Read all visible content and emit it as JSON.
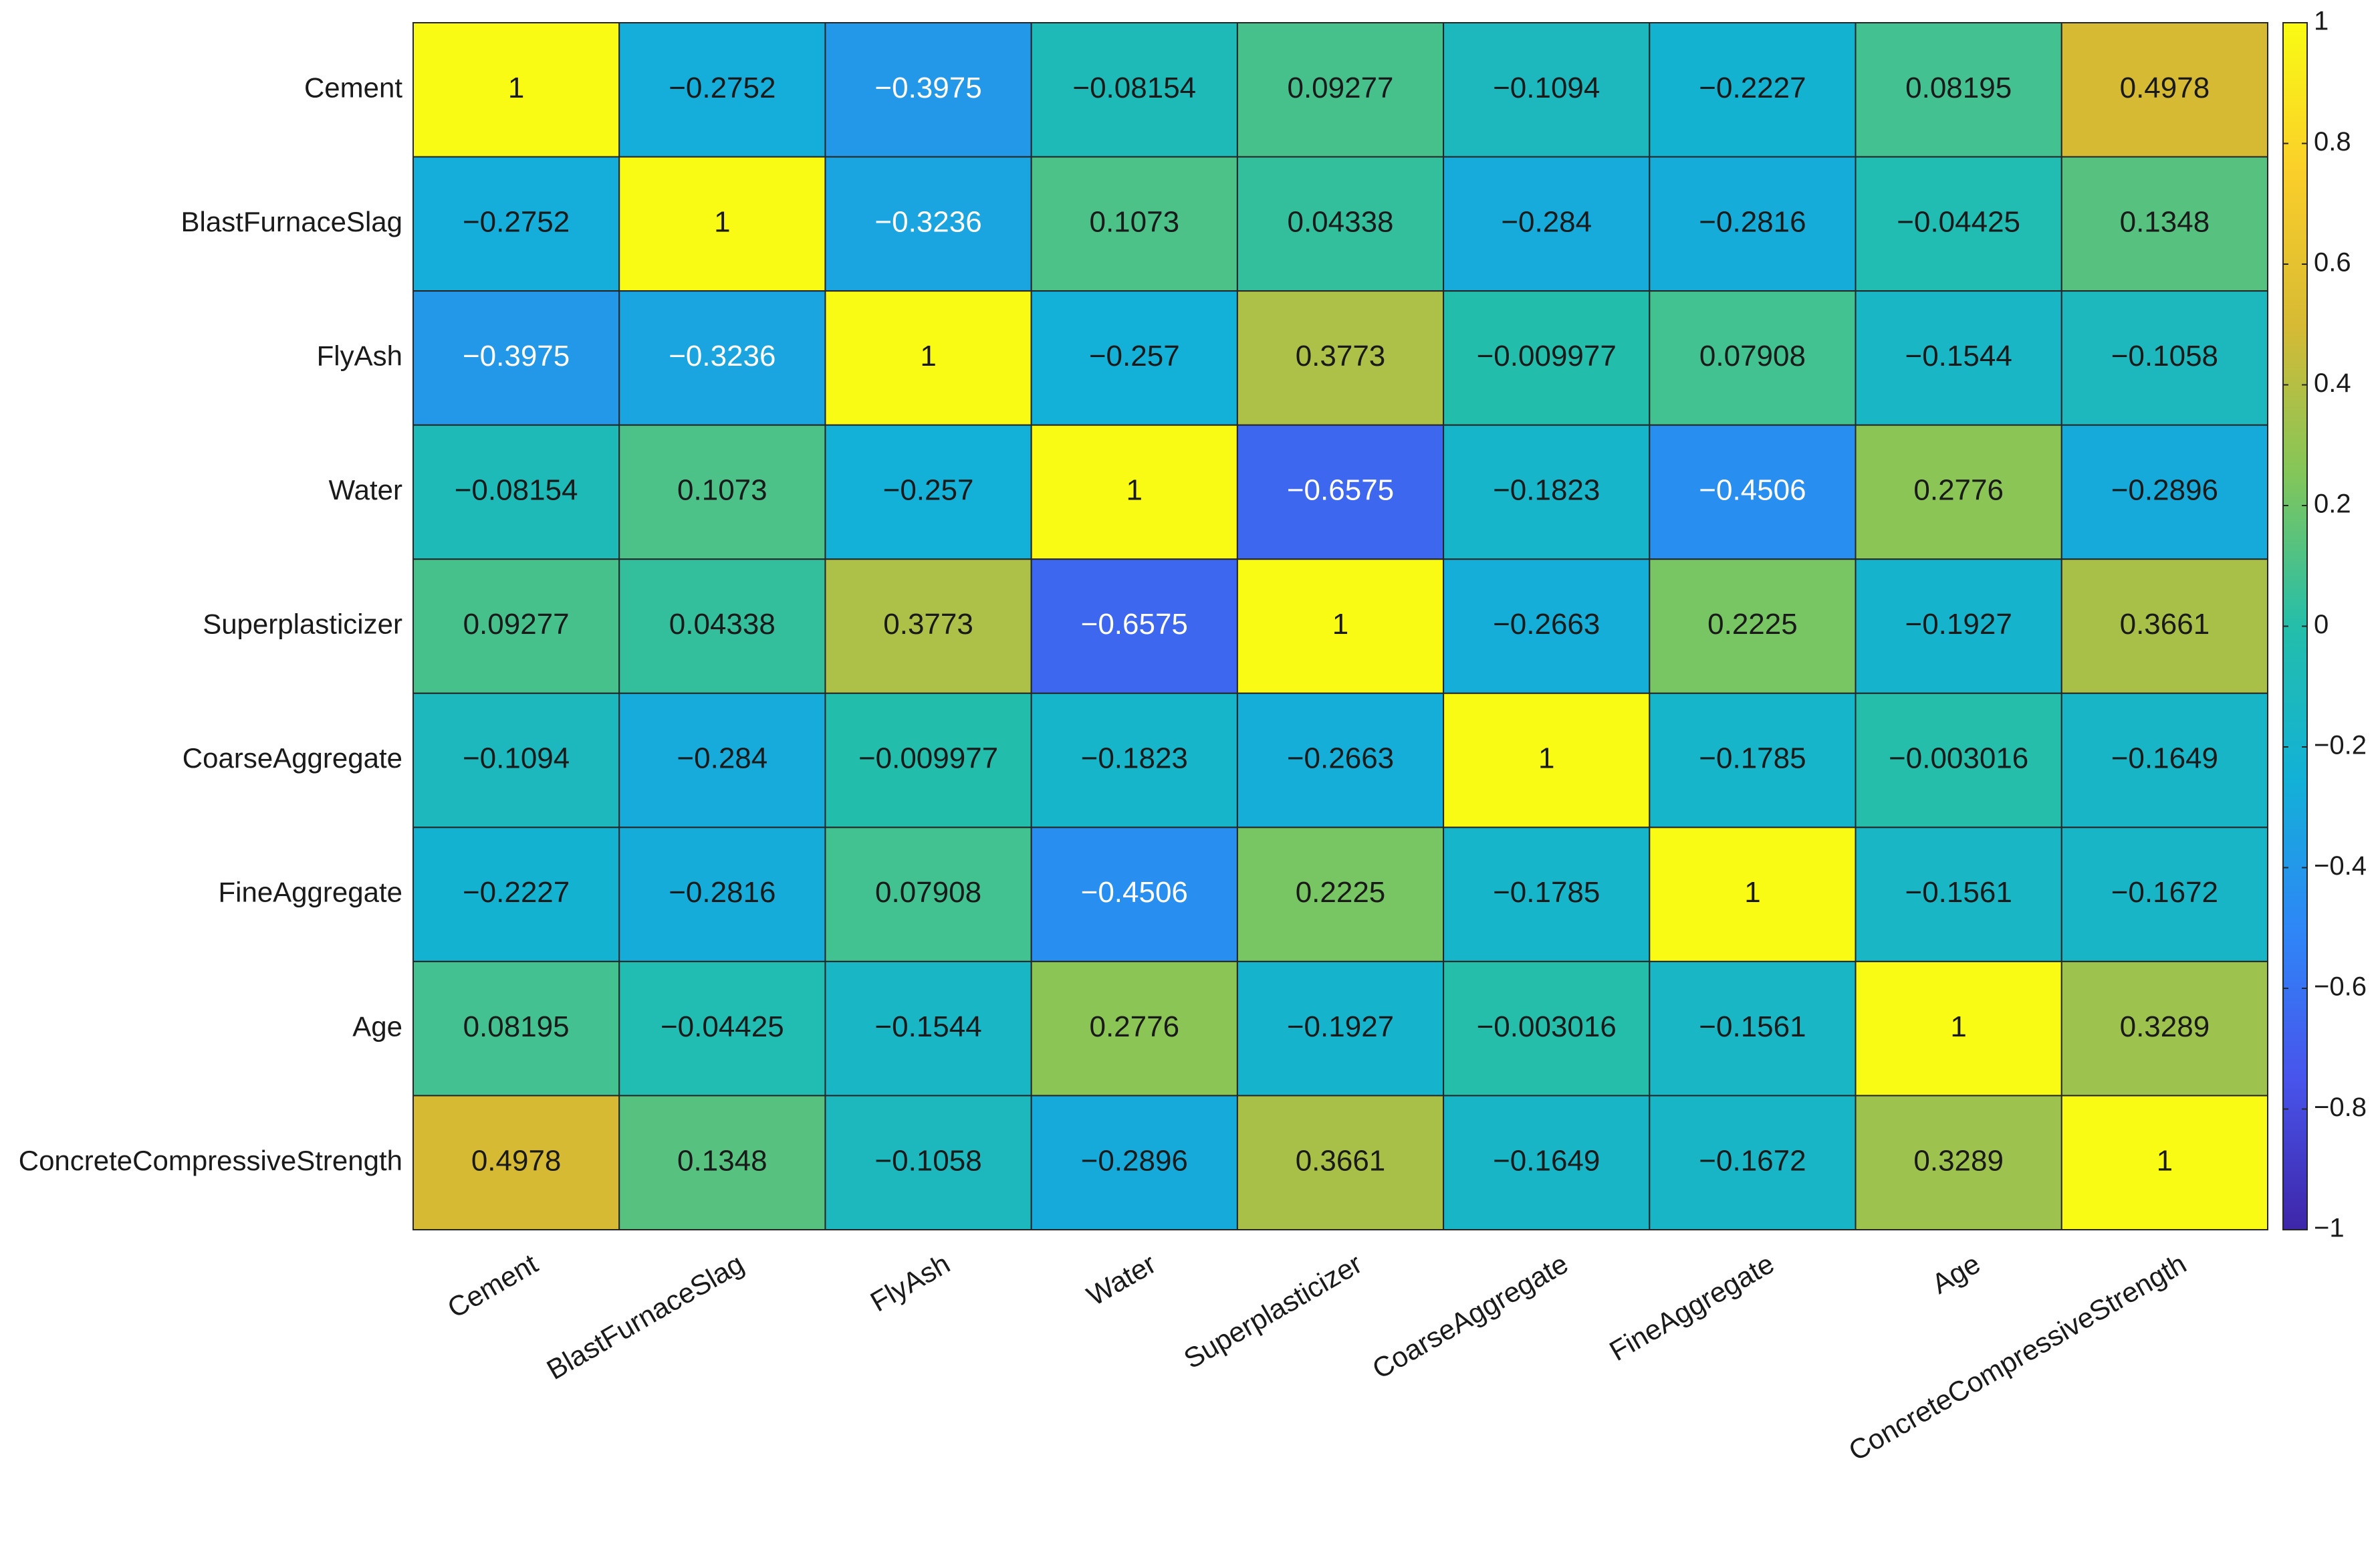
{
  "chart_data": {
    "type": "heatmap",
    "categories": [
      "Cement",
      "BlastFurnaceSlag",
      "FlyAsh",
      "Water",
      "Superplasticizer",
      "CoarseAggregate",
      "FineAggregate",
      "Age",
      "ConcreteCompressiveStrength"
    ],
    "values": [
      [
        1,
        -0.2752,
        -0.3975,
        -0.08154,
        0.09277,
        -0.1094,
        -0.2227,
        0.08195,
        0.4978
      ],
      [
        -0.2752,
        1,
        -0.3236,
        0.1073,
        0.04338,
        -0.284,
        -0.2816,
        -0.04425,
        0.1348
      ],
      [
        -0.3975,
        -0.3236,
        1,
        -0.257,
        0.3773,
        -0.009977,
        0.07908,
        -0.1544,
        -0.1058
      ],
      [
        -0.08154,
        0.1073,
        -0.257,
        1,
        -0.6575,
        -0.1823,
        -0.4506,
        0.2776,
        -0.2896
      ],
      [
        0.09277,
        0.04338,
        0.3773,
        -0.6575,
        1,
        -0.2663,
        0.2225,
        -0.1927,
        0.3661
      ],
      [
        -0.1094,
        -0.284,
        -0.009977,
        -0.1823,
        -0.2663,
        1,
        -0.1785,
        -0.003016,
        -0.1649
      ],
      [
        -0.2227,
        -0.2816,
        0.07908,
        -0.4506,
        0.2225,
        -0.1785,
        1,
        -0.1561,
        -0.1672
      ],
      [
        0.08195,
        -0.04425,
        -0.1544,
        0.2776,
        -0.1927,
        -0.003016,
        -0.1561,
        1,
        0.3289
      ],
      [
        0.4978,
        0.1348,
        -0.1058,
        -0.2896,
        0.3661,
        -0.1649,
        -0.1672,
        0.3289,
        1
      ]
    ],
    "value_labels": [
      [
        "1",
        "−0.2752",
        "−0.3975",
        "−0.08154",
        "0.09277",
        "−0.1094",
        "−0.2227",
        "0.08195",
        "0.4978"
      ],
      [
        "−0.2752",
        "1",
        "−0.3236",
        "0.1073",
        "0.04338",
        "−0.284",
        "−0.2816",
        "−0.04425",
        "0.1348"
      ],
      [
        "−0.3975",
        "−0.3236",
        "1",
        "−0.257",
        "0.3773",
        "−0.009977",
        "0.07908",
        "−0.1544",
        "−0.1058"
      ],
      [
        "−0.08154",
        "0.1073",
        "−0.257",
        "1",
        "−0.6575",
        "−0.1823",
        "−0.4506",
        "0.2776",
        "−0.2896"
      ],
      [
        "0.09277",
        "0.04338",
        "0.3773",
        "−0.6575",
        "1",
        "−0.2663",
        "0.2225",
        "−0.1927",
        "0.3661"
      ],
      [
        "−0.1094",
        "−0.284",
        "−0.009977",
        "−0.1823",
        "−0.2663",
        "1",
        "−0.1785",
        "−0.003016",
        "−0.1649"
      ],
      [
        "−0.2227",
        "−0.2816",
        "0.07908",
        "−0.4506",
        "0.2225",
        "−0.1785",
        "1",
        "−0.1561",
        "−0.1672"
      ],
      [
        "0.08195",
        "−0.04425",
        "−0.1544",
        "0.2776",
        "−0.1927",
        "−0.003016",
        "−0.1561",
        "1",
        "0.3289"
      ],
      [
        "0.4978",
        "0.1348",
        "−0.1058",
        "−0.2896",
        "0.3661",
        "−0.1649",
        "−0.1672",
        "0.3289",
        "1"
      ]
    ],
    "colormap": "parula",
    "clim": [
      -1,
      1
    ],
    "cticks": [
      {
        "value": -1,
        "label": "−1"
      },
      {
        "value": -0.8,
        "label": "−0.8"
      },
      {
        "value": -0.6,
        "label": "−0.6"
      },
      {
        "value": -0.4,
        "label": "−0.4"
      },
      {
        "value": -0.2,
        "label": "−0.2"
      },
      0,
      0.2,
      0.4,
      0.6,
      0.8,
      1
    ]
  }
}
